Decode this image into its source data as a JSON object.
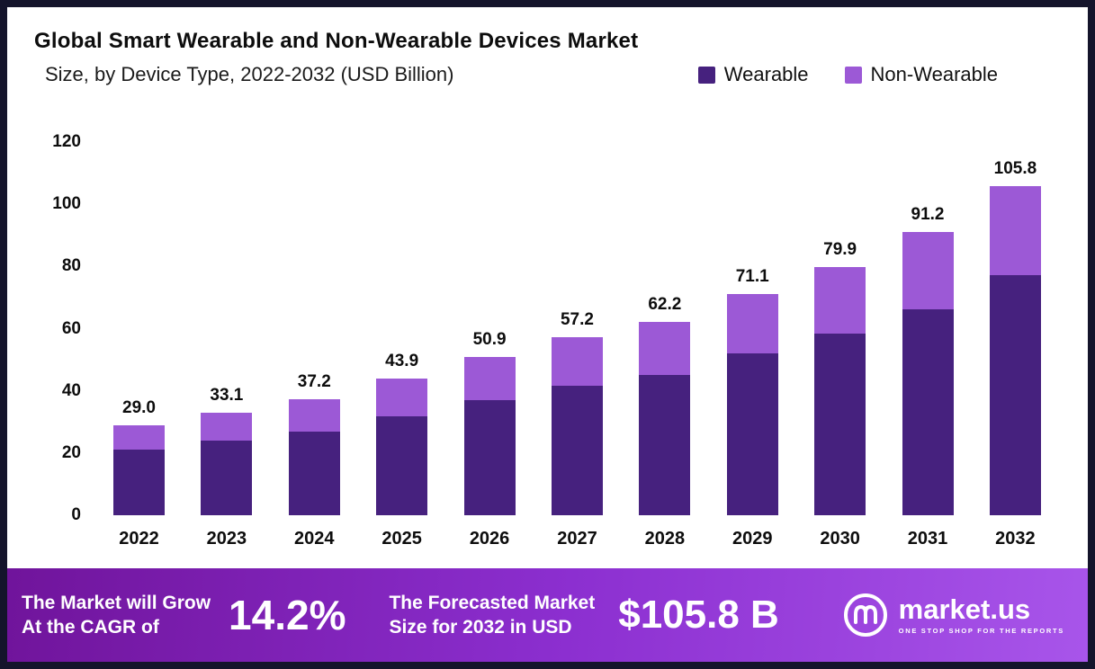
{
  "header": {
    "title_line1": "Global Smart Wearable and Non-Wearable Devices Market",
    "title_line2": "Size, by Device Type, 2022-2032 (USD Billion)"
  },
  "legend": {
    "wearable_label": "Wearable",
    "non_wearable_label": "Non-Wearable"
  },
  "colors": {
    "wearable": "#46217e",
    "non_wearable": "#9c59d6",
    "border": "#14142b",
    "banner_gradient_start": "#70149b",
    "banner_gradient_end": "#a855ea"
  },
  "chart_data": {
    "type": "bar",
    "stacked": true,
    "title": "Global Smart Wearable and Non-Wearable Devices Market Size, by Device Type, 2022-2032 (USD Billion)",
    "categories": [
      "2022",
      "2023",
      "2024",
      "2025",
      "2026",
      "2027",
      "2028",
      "2029",
      "2030",
      "2031",
      "2032"
    ],
    "series": [
      {
        "name": "Wearable",
        "color": "#46217e",
        "values": [
          21.0,
          24.0,
          26.8,
          31.7,
          37.0,
          41.5,
          45.2,
          52.0,
          58.3,
          66.3,
          77.3
        ]
      },
      {
        "name": "Non-Wearable",
        "color": "#9c59d6",
        "values": [
          8.0,
          9.1,
          10.4,
          12.2,
          13.9,
          15.7,
          17.0,
          19.1,
          21.6,
          24.9,
          28.5
        ]
      }
    ],
    "totals": [
      "29.0",
      "33.1",
      "37.2",
      "43.9",
      "50.9",
      "57.2",
      "62.2",
      "71.1",
      "79.9",
      "91.2",
      "105.8"
    ],
    "ylim": [
      0,
      120
    ],
    "yticks": [
      0,
      20,
      40,
      60,
      80,
      100,
      120
    ],
    "xlabel": "",
    "ylabel": "USD Billion",
    "grid": false,
    "legend_position": "top-right"
  },
  "footer": {
    "left_line1": "The Market will Grow",
    "left_line2": "At the CAGR of",
    "cagr": "14.2%",
    "mid_line1": "The Forecasted Market",
    "mid_line2": "Size for 2032 in USD",
    "forecast_value": "$105.8 B",
    "brand": "market.us",
    "tagline": "ONE STOP SHOP FOR THE REPORTS"
  }
}
